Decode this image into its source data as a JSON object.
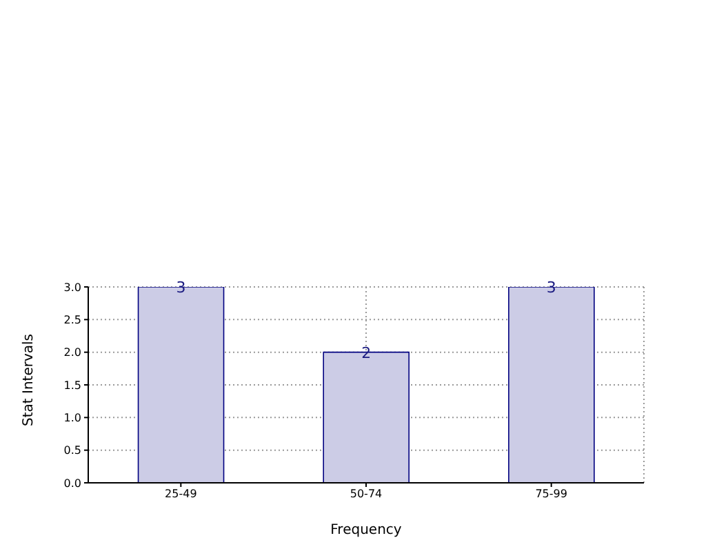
{
  "chart_data": {
    "type": "bar",
    "xlabel": "Frequency",
    "ylabel": "Stat Intervals",
    "categories": [
      "25-49",
      "50-74",
      "75-99"
    ],
    "values": [
      3,
      2,
      3
    ],
    "color": "#cccce6",
    "data_labels": true,
    "ylim": [
      0,
      3
    ],
    "yticks": [
      {
        "value": 0,
        "label": "0.0"
      },
      0.5,
      {
        "value": 1,
        "label": "1.0"
      },
      1.5,
      {
        "value": 2,
        "label": "2.0"
      },
      2.5,
      {
        "value": 3,
        "label": "3.0"
      }
    ],
    "grid": true
  }
}
